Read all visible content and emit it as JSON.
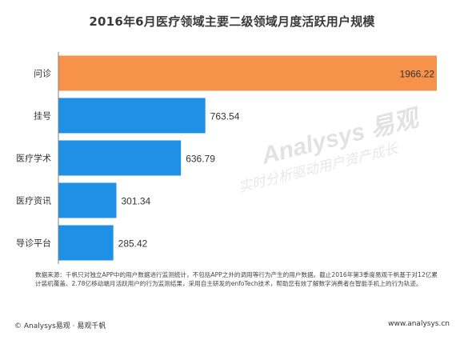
{
  "chart_data": {
    "type": "bar",
    "orientation": "horizontal",
    "title": "2016年6月医疗领域主要二级领域月度活跃用户规模",
    "categories": [
      "问诊",
      "挂号",
      "医疗学术",
      "医疗资讯",
      "导诊平台"
    ],
    "values": [
      1966.22,
      763.54,
      636.79,
      301.34,
      285.42
    ],
    "value_labels": [
      "1966.22",
      "763.54",
      "636.79",
      "301.34",
      "285.42"
    ],
    "highlight_index": 0,
    "colors": {
      "highlight": "#f6924a",
      "bar": "#1e90e6",
      "axis": "#808080"
    },
    "grid": false,
    "legend": "none"
  },
  "watermark": {
    "brand": "Analysys 易观",
    "slogan": "实时分析驱动用户资产成长"
  },
  "note": "数据来源：千帆只对独立APP中的用户数据进行监测统计，不包括APP之外的调用等行为产生的用户数据。截止2016年第3季度易观千帆基于对12亿累计装机覆盖、2.78亿移动端月活跃用户的行为监测结果，采用自主研发的enfoTech技术，帮助您有效了解数字消费者在智能手机上的行为轨迹。",
  "footer": {
    "left": "© Analysys易观 · 易观千帆",
    "right": "www.analysys.cn"
  }
}
